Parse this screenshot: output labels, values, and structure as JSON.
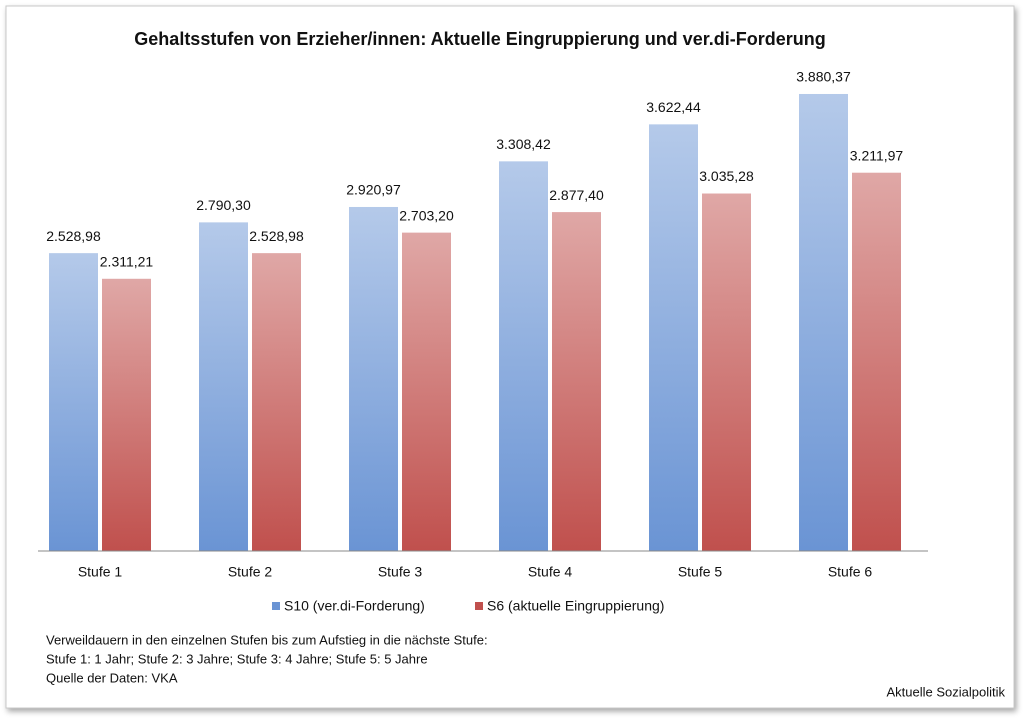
{
  "chart_data": {
    "type": "bar",
    "title": "Gehaltsstufen von Erzieher/innen: Aktuelle Eingruppierung und ver.di-Forderung",
    "categories": [
      "Stufe 1",
      "Stufe 2",
      "Stufe 3",
      "Stufe 4",
      "Stufe 5",
      "Stufe 6"
    ],
    "series": [
      {
        "name": "S10 (ver.di-Forderung)",
        "color": "#6a94d4",
        "values": [
          2528.98,
          2790.3,
          2920.97,
          3308.42,
          3622.44,
          3880.37
        ],
        "value_labels": [
          "2.528,98",
          "2.790,30",
          "2.920,97",
          "3.308,42",
          "3.622,44",
          "3.880,37"
        ]
      },
      {
        "name": "S6 (aktuelle Eingruppierung)",
        "color": "#c0504d",
        "values": [
          2311.21,
          2528.98,
          2703.2,
          2877.4,
          3035.28,
          3211.97
        ],
        "value_labels": [
          "2.311,21",
          "2.528,98",
          "2.703,20",
          "2.877,40",
          "3.035,28",
          "3.211,97"
        ]
      }
    ],
    "ylim": [
      0,
      4500
    ],
    "notes": [
      "Verweildauern in den einzelnen Stufen bis zum Aufstieg in die nächste Stufe:",
      "Stufe 1: 1 Jahr; Stufe 2: 3 Jahre; Stufe 3: 4 Jahre; Stufe 5: 5 Jahre",
      "Quelle der Daten: VKA"
    ],
    "source": "Aktuelle Sozialpolitik"
  }
}
